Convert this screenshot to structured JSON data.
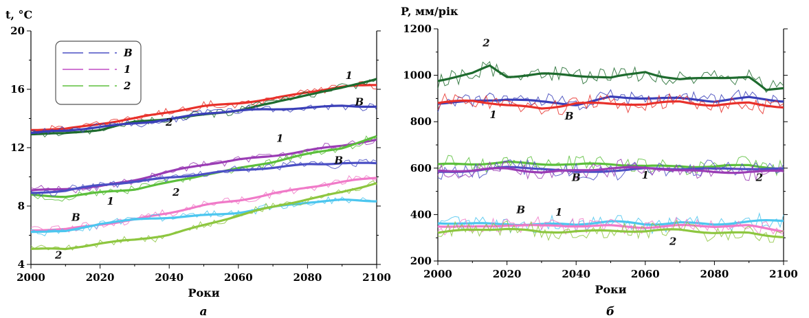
{
  "chart_data": [
    {
      "id": "a",
      "type": "line",
      "panel_letter": "а",
      "ylabel": "t, °C",
      "xlabel": "Роки",
      "xlim": [
        2000,
        2100
      ],
      "ylim": [
        4,
        20
      ],
      "xticks": [
        2000,
        2020,
        2040,
        2060,
        2080,
        2100
      ],
      "yticks": [
        4,
        8,
        12,
        16,
        20
      ],
      "legend": {
        "placement": "top-left",
        "entries": [
          {
            "label": "B",
            "color": "#4a4fc4"
          },
          {
            "label": "1",
            "color": "#c04ac4"
          },
          {
            "label": "2",
            "color": "#5cbf3c"
          }
        ]
      },
      "series": [
        {
          "group": "top",
          "scenario": "1",
          "color": "#e8302a",
          "x": [
            2000,
            2010,
            2020,
            2030,
            2040,
            2050,
            2060,
            2070,
            2080,
            2090,
            2100
          ],
          "values": [
            13.2,
            13.3,
            13.7,
            14.0,
            14.4,
            14.8,
            15.1,
            15.4,
            15.8,
            16.1,
            16.3
          ]
        },
        {
          "group": "top",
          "scenario": "2",
          "color": "#1e6b2e",
          "x": [
            2000,
            2010,
            2020,
            2030,
            2040,
            2050,
            2060,
            2070,
            2080,
            2090,
            2100
          ],
          "values": [
            13.0,
            13.0,
            13.2,
            13.7,
            14.0,
            14.3,
            14.6,
            15.0,
            15.6,
            16.1,
            16.8
          ]
        },
        {
          "group": "top",
          "scenario": "B",
          "color": "#3a3fb8",
          "x": [
            2000,
            2010,
            2020,
            2030,
            2040,
            2050,
            2060,
            2070,
            2080,
            2090,
            2100
          ],
          "values": [
            13.0,
            13.1,
            13.4,
            13.7,
            14.0,
            14.3,
            14.5,
            14.6,
            14.8,
            14.9,
            14.8
          ]
        },
        {
          "group": "mid",
          "scenario": "1",
          "color": "#9a3cb4",
          "x": [
            2000,
            2010,
            2020,
            2030,
            2040,
            2050,
            2060,
            2070,
            2080,
            2090,
            2100
          ],
          "values": [
            9.0,
            9.2,
            9.4,
            9.8,
            10.3,
            10.8,
            11.2,
            11.5,
            11.8,
            12.1,
            12.5
          ]
        },
        {
          "group": "mid",
          "scenario": "2",
          "color": "#5cbf3c",
          "x": [
            2000,
            2010,
            2020,
            2030,
            2040,
            2050,
            2060,
            2070,
            2080,
            2090,
            2100
          ],
          "values": [
            8.8,
            8.7,
            8.9,
            9.1,
            9.6,
            10.2,
            10.6,
            11.0,
            11.5,
            12.0,
            12.8
          ]
        },
        {
          "group": "mid",
          "scenario": "B",
          "color": "#4a4fc4",
          "x": [
            2000,
            2010,
            2020,
            2030,
            2040,
            2050,
            2060,
            2070,
            2080,
            2090,
            2100
          ],
          "values": [
            8.9,
            9.0,
            9.4,
            9.7,
            10.0,
            10.2,
            10.4,
            10.6,
            10.9,
            11.0,
            10.9
          ]
        },
        {
          "group": "low",
          "scenario": "1",
          "color": "#f07ac8",
          "x": [
            2000,
            2010,
            2020,
            2030,
            2040,
            2050,
            2060,
            2070,
            2080,
            2090,
            2100
          ],
          "values": [
            6.3,
            6.4,
            6.8,
            7.1,
            7.5,
            8.0,
            8.4,
            8.9,
            9.3,
            9.6,
            9.9
          ]
        },
        {
          "group": "low",
          "scenario": "B",
          "color": "#4cc6ef",
          "x": [
            2000,
            2010,
            2020,
            2030,
            2040,
            2050,
            2060,
            2070,
            2080,
            2090,
            2100
          ],
          "values": [
            6.3,
            6.3,
            6.8,
            7.0,
            7.2,
            7.4,
            7.6,
            7.9,
            8.2,
            8.4,
            8.4
          ]
        },
        {
          "group": "low",
          "scenario": "2",
          "color": "#8dc63f",
          "x": [
            2000,
            2010,
            2020,
            2030,
            2040,
            2050,
            2060,
            2070,
            2080,
            2090,
            2100
          ],
          "values": [
            5.1,
            5.0,
            5.4,
            5.7,
            6.1,
            6.7,
            7.3,
            7.9,
            8.5,
            9.0,
            9.6
          ]
        }
      ],
      "annotations": [
        {
          "text": "1",
          "x": 2092,
          "y": 16.7
        },
        {
          "text": "B",
          "x": 2095,
          "y": 14.9
        },
        {
          "text": "2",
          "x": 2040,
          "y": 13.5
        },
        {
          "text": "1",
          "x": 2072,
          "y": 12.4
        },
        {
          "text": "B",
          "x": 2089,
          "y": 10.9
        },
        {
          "text": "2",
          "x": 2042,
          "y": 8.7
        },
        {
          "text": "1",
          "x": 2023,
          "y": 8.1
        },
        {
          "text": "B",
          "x": 2013,
          "y": 7.0
        },
        {
          "text": "2",
          "x": 2008,
          "y": 4.4
        }
      ]
    },
    {
      "id": "b",
      "type": "line",
      "panel_letter": "б",
      "ylabel": "P, мм/рік",
      "xlabel": "Роки",
      "xlim": [
        2000,
        2100
      ],
      "ylim": [
        200,
        1200
      ],
      "xticks": [
        2000,
        2020,
        2040,
        2060,
        2080,
        2100
      ],
      "yticks": [
        200,
        400,
        600,
        800,
        1000,
        1200
      ],
      "series": [
        {
          "group": "top",
          "scenario": "2",
          "color": "#1e6b2e",
          "x": [
            2000,
            2010,
            2015,
            2020,
            2030,
            2040,
            2050,
            2060,
            2065,
            2070,
            2080,
            2090,
            2095,
            2100
          ],
          "values": [
            975,
            1010,
            1045,
            1000,
            1005,
            995,
            985,
            1020,
            1000,
            985,
            990,
            985,
            930,
            945
          ]
        },
        {
          "group": "top",
          "scenario": "B",
          "color": "#3a3fb8",
          "x": [
            2000,
            2010,
            2020,
            2030,
            2040,
            2050,
            2060,
            2070,
            2080,
            2090,
            2100
          ],
          "values": [
            885,
            890,
            895,
            880,
            875,
            910,
            905,
            895,
            885,
            905,
            895
          ]
        },
        {
          "group": "top",
          "scenario": "1",
          "color": "#e8302a",
          "x": [
            2000,
            2010,
            2020,
            2030,
            2040,
            2050,
            2060,
            2070,
            2080,
            2090,
            2100
          ],
          "values": [
            880,
            885,
            870,
            860,
            885,
            875,
            870,
            885,
            875,
            885,
            860
          ]
        },
        {
          "group": "mid",
          "scenario": "2",
          "color": "#5cbf3c",
          "x": [
            2000,
            2010,
            2020,
            2030,
            2040,
            2050,
            2060,
            2070,
            2080,
            2090,
            2100
          ],
          "values": [
            610,
            620,
            630,
            620,
            610,
            615,
            610,
            615,
            605,
            610,
            590
          ]
        },
        {
          "group": "mid",
          "scenario": "B",
          "color": "#4a4fc4",
          "x": [
            2000,
            2010,
            2020,
            2030,
            2040,
            2050,
            2060,
            2070,
            2080,
            2090,
            2100
          ],
          "values": [
            585,
            595,
            600,
            595,
            580,
            595,
            600,
            595,
            590,
            600,
            600
          ]
        },
        {
          "group": "mid",
          "scenario": "1",
          "color": "#9a3cb4",
          "x": [
            2000,
            2010,
            2020,
            2030,
            2040,
            2050,
            2060,
            2070,
            2080,
            2090,
            2100
          ],
          "values": [
            590,
            585,
            595,
            585,
            595,
            600,
            595,
            590,
            585,
            590,
            585
          ]
        },
        {
          "group": "low",
          "scenario": "B",
          "color": "#4cc6ef",
          "x": [
            2000,
            2010,
            2020,
            2030,
            2040,
            2050,
            2060,
            2070,
            2080,
            2090,
            2100
          ],
          "values": [
            360,
            360,
            365,
            360,
            355,
            365,
            360,
            370,
            360,
            365,
            370
          ]
        },
        {
          "group": "low",
          "scenario": "1",
          "color": "#f07ac8",
          "x": [
            2000,
            2010,
            2020,
            2030,
            2040,
            2050,
            2060,
            2070,
            2080,
            2090,
            2100
          ],
          "values": [
            355,
            350,
            355,
            345,
            350,
            355,
            350,
            350,
            345,
            350,
            335
          ]
        },
        {
          "group": "low",
          "scenario": "2",
          "color": "#8dc63f",
          "x": [
            2000,
            2010,
            2020,
            2030,
            2040,
            2050,
            2060,
            2070,
            2080,
            2090,
            2100
          ],
          "values": [
            325,
            330,
            335,
            325,
            335,
            330,
            325,
            330,
            325,
            325,
            305
          ]
        }
      ],
      "annotations": [
        {
          "text": "2",
          "x": 2014,
          "y": 1125
        },
        {
          "text": "1",
          "x": 2016,
          "y": 815
        },
        {
          "text": "B",
          "x": 2038,
          "y": 810
        },
        {
          "text": "B",
          "x": 2040,
          "y": 545
        },
        {
          "text": "1",
          "x": 2060,
          "y": 555
        },
        {
          "text": "2",
          "x": 2093,
          "y": 545
        },
        {
          "text": "B",
          "x": 2024,
          "y": 405
        },
        {
          "text": "1",
          "x": 2035,
          "y": 395
        },
        {
          "text": "2",
          "x": 2068,
          "y": 270
        }
      ]
    }
  ]
}
